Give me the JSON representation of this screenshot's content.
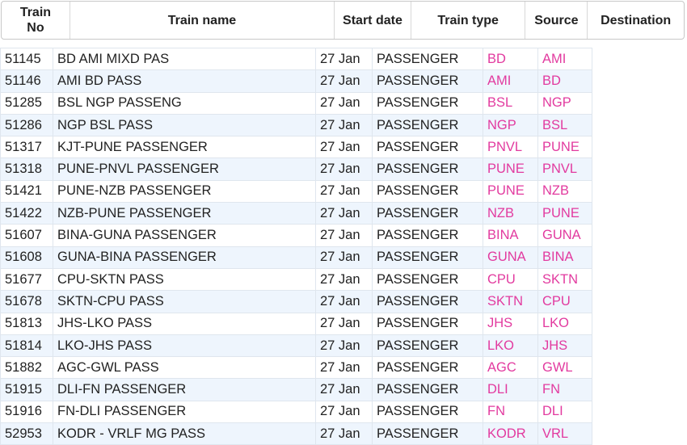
{
  "header": {
    "columns": [
      "Train No",
      "Train name",
      "Start date",
      "Train type",
      "Source",
      "Destination"
    ]
  },
  "table": {
    "rows": [
      [
        "51145",
        "BD AMI MIXD PAS",
        "27 Jan",
        "PASSENGER",
        "BD",
        "AMI"
      ],
      [
        "51146",
        "AMI BD PASS",
        "27 Jan",
        "PASSENGER",
        "AMI",
        "BD"
      ],
      [
        "51285",
        "BSL NGP PASSENG",
        "27 Jan",
        "PASSENGER",
        "BSL",
        "NGP"
      ],
      [
        "51286",
        "NGP BSL PASS",
        "27 Jan",
        "PASSENGER",
        "NGP",
        "BSL"
      ],
      [
        "51317",
        "KJT-PUNE PASSENGER",
        "27 Jan",
        "PASSENGER",
        "PNVL",
        "PUNE"
      ],
      [
        "51318",
        "PUNE-PNVL PASSENGER",
        "27 Jan",
        "PASSENGER",
        "PUNE",
        "PNVL"
      ],
      [
        "51421",
        "PUNE-NZB PASSENGER",
        "27 Jan",
        "PASSENGER",
        "PUNE",
        "NZB"
      ],
      [
        "51422",
        "NZB-PUNE PASSENGER",
        "27 Jan",
        "PASSENGER",
        "NZB",
        "PUNE"
      ],
      [
        "51607",
        "BINA-GUNA PASSENGER",
        "27 Jan",
        "PASSENGER",
        "BINA",
        "GUNA"
      ],
      [
        "51608",
        "GUNA-BINA PASSENGER",
        "27 Jan",
        "PASSENGER",
        "GUNA",
        "BINA"
      ],
      [
        "51677",
        "CPU-SKTN PASS",
        "27 Jan",
        "PASSENGER",
        "CPU",
        "SKTN"
      ],
      [
        "51678",
        "SKTN-CPU PASS",
        "27 Jan",
        "PASSENGER",
        "SKTN",
        "CPU"
      ],
      [
        "51813",
        "JHS-LKO PASS",
        "27 Jan",
        "PASSENGER",
        "JHS",
        "LKO"
      ],
      [
        "51814",
        "LKO-JHS PASS",
        "27 Jan",
        "PASSENGER",
        "LKO",
        "JHS"
      ],
      [
        "51882",
        "AGC-GWL PASS",
        "27 Jan",
        "PASSENGER",
        "AGC",
        "GWL"
      ],
      [
        "51915",
        "DLI-FN PASSENGER",
        "27 Jan",
        "PASSENGER",
        "DLI",
        "FN"
      ],
      [
        "51916",
        "FN-DLI PASSENGER",
        "27 Jan",
        "PASSENGER",
        "FN",
        "DLI"
      ],
      [
        "52953",
        "KODR - VRLF MG PASS",
        "27 Jan",
        "PASSENGER",
        "KODR",
        "VRL"
      ]
    ]
  }
}
